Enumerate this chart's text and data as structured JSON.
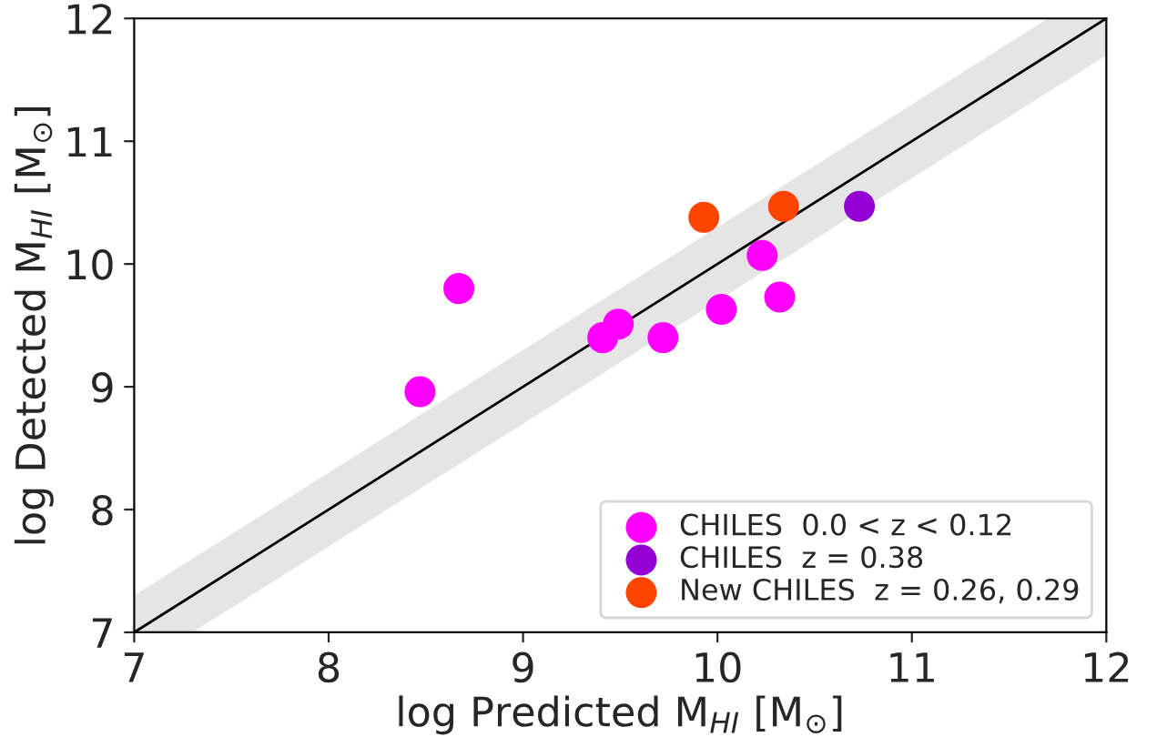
{
  "chart_data": {
    "type": "scatter",
    "xlabel": "log Predicted M$_{HI}$ [M$_{⊙}$]",
    "ylabel": "log Detected M$_{HI}$ [M$_{⊙}$]",
    "xlim": [
      7,
      12
    ],
    "ylim": [
      7,
      12
    ],
    "xticks": [
      7,
      8,
      9,
      10,
      11,
      12
    ],
    "yticks": [
      7,
      8,
      9,
      10,
      11,
      12
    ],
    "grid": false,
    "legend": "bottom right",
    "marker": "circle",
    "series": [
      {
        "type": "line",
        "color": "#000000",
        "marker": "none",
        "x": [
          7,
          7.3,
          11.7,
          12
        ],
        "values": [
          7,
          7.3,
          11.7,
          12
        ],
        "lower": [
          7,
          7,
          11.4,
          11.7
        ],
        "upper": [
          7.3,
          7.6,
          12,
          12
        ]
      },
      {
        "name": "CHILES  0.0 < z < 0.12",
        "color": "#ff00ff",
        "x": [
          8.47,
          8.67,
          9.41,
          9.49,
          9.72,
          10.02,
          10.23,
          10.32
        ],
        "values": [
          8.96,
          9.8,
          9.4,
          9.51,
          9.4,
          9.63,
          10.07,
          9.73
        ]
      },
      {
        "name": "CHILES  z = 0.38",
        "color": "#9400d3",
        "x": [
          10.73
        ],
        "values": [
          10.47
        ]
      },
      {
        "name": "New CHILES  z = 0.26, 0.29",
        "color": "#ff4500",
        "x": [
          9.93,
          10.34
        ],
        "values": [
          10.38,
          10.47
        ]
      }
    ]
  }
}
